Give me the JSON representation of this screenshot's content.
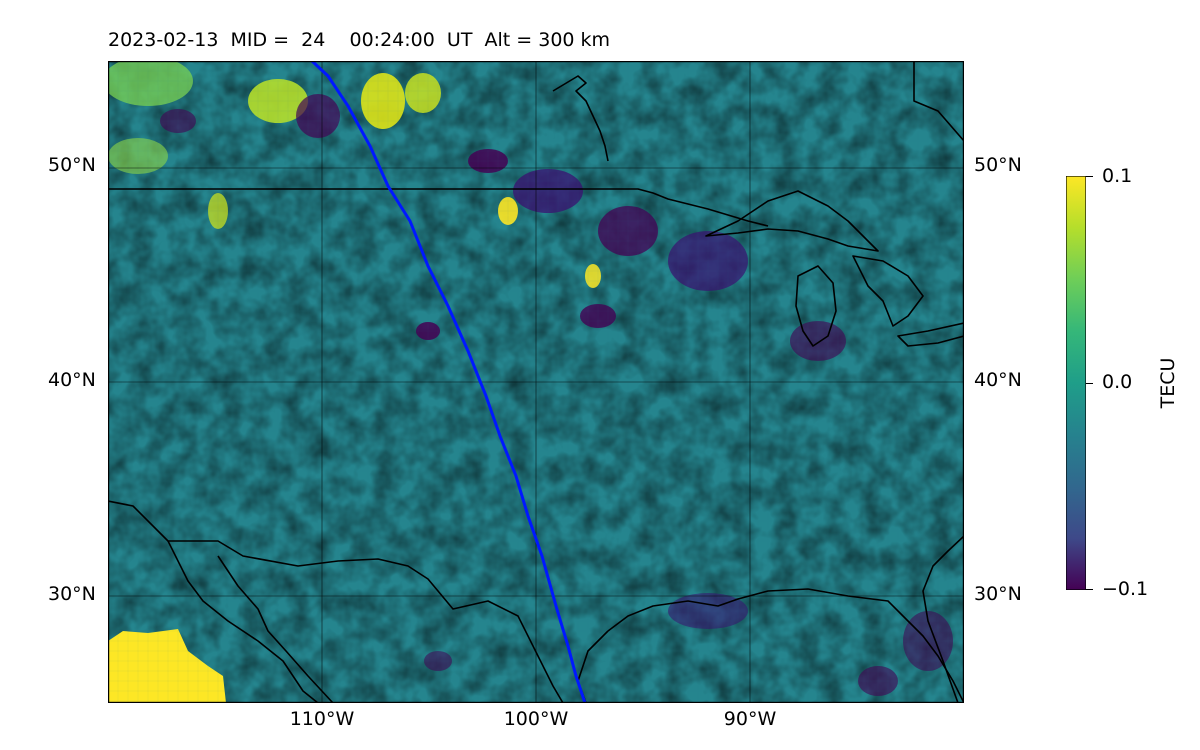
{
  "title": "2023-02-13  MID =  24    00:24:00  UT  Alt = 300 km",
  "map": {
    "lat_labels": [
      "50°N",
      "40°N",
      "30°N"
    ],
    "lon_labels": [
      "110°W",
      "100°W",
      "90°W"
    ],
    "lat_ticks": [
      50,
      40,
      30
    ],
    "lon_ticks": [
      -110,
      -100,
      -90
    ],
    "extent": {
      "lon": [
        -120,
        -80
      ],
      "lat": [
        25,
        55
      ]
    },
    "track_color": "#0018ff"
  },
  "colorbar": {
    "label": "TECU",
    "ticks": [
      "0.1",
      "0.0",
      "−0.1"
    ],
    "range": [
      -0.1,
      0.1
    ],
    "colormap": "viridis"
  }
}
